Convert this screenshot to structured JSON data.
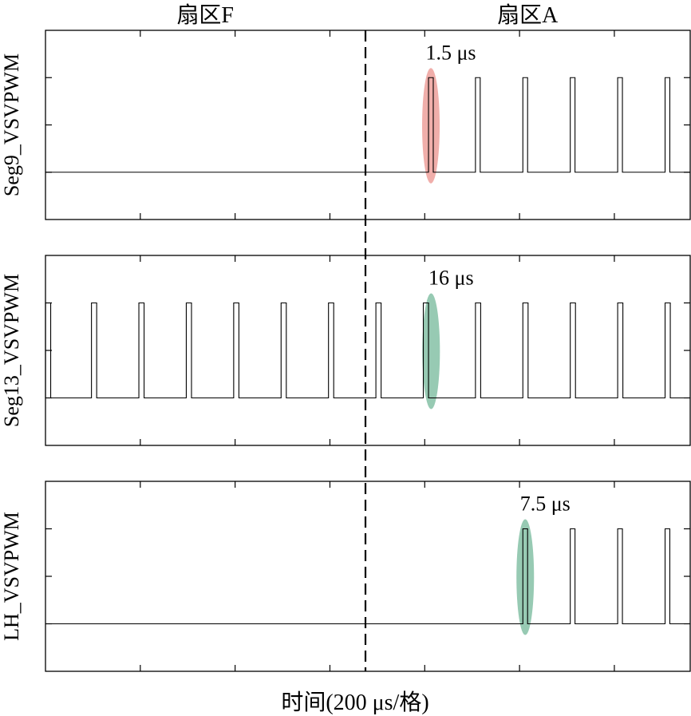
{
  "colors": {
    "red_highlight": "#e8827c",
    "green_highlight": "#5fae8a",
    "line": "#000000"
  },
  "chart_data": {
    "type": "line",
    "xlabel": "时间(200 μs/格)",
    "x_range_us": [
      0,
      1360
    ],
    "x_tick_step_us": 200,
    "sector_divider_us": 675,
    "sectors": [
      {
        "label": "扇区F",
        "center_us": 337
      },
      {
        "label": "扇区A",
        "center_us": 1017
      }
    ],
    "panels": [
      {
        "ylabel": "Seg9_VSVPWM",
        "pulse_width_us": 10,
        "pulse_starts_us": [
          808,
          907,
          1007,
          1107,
          1207,
          1307
        ],
        "annotation": {
          "text": "1.5 μs",
          "at_us": 808,
          "color": "red"
        }
      },
      {
        "ylabel": "Seg13_VSVPWM",
        "pulse_width_us": 11,
        "pulse_starts_us": [
          0,
          97,
          197,
          297,
          397,
          497,
          597,
          697,
          797,
          907,
          1007,
          1107,
          1207,
          1307
        ],
        "annotation": {
          "text": "16 μs",
          "at_us": 808,
          "color": "green"
        }
      },
      {
        "ylabel": "LH_VSVPWM",
        "pulse_width_us": 10,
        "pulse_starts_us": [
          1007,
          1107,
          1207,
          1307
        ],
        "annotation": {
          "text": "7.5 μs",
          "at_us": 1007,
          "color": "green"
        }
      }
    ]
  }
}
